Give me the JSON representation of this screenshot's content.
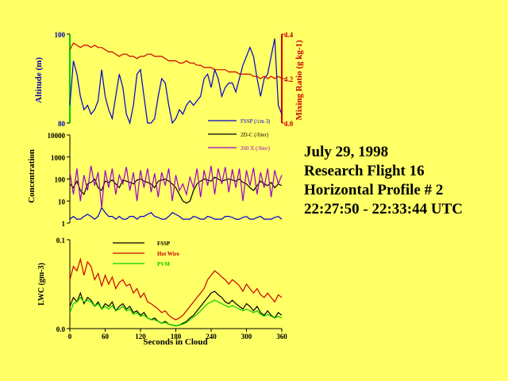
{
  "info": {
    "line1": "July 29, 1998",
    "line2": "Research Flight 16",
    "line3": "Horizontal Profile # 2",
    "line4": "22:27:50 - 22:33:44 UTC"
  },
  "colors": {
    "background": "#FFFF66",
    "axis": "#000000",
    "black": "#000000",
    "blue": "#0000CC",
    "red": "#CC0000",
    "purple": "#9900CC",
    "green": "#00CC00",
    "altitude_label": "#0000AA",
    "mixing_label": "#CC0000"
  },
  "chart_data": [
    {
      "type": "line",
      "panel": "top",
      "ylabel": "Altitude (m)",
      "y2label": "Mixing Ratio (g kg-1)",
      "ylim": [
        80,
        100
      ],
      "yticks": [
        "80",
        "100"
      ],
      "y2lim": [
        4.0,
        4.4
      ],
      "y2ticks": [
        "4.0",
        "4.2",
        "4.4"
      ],
      "xlim": [
        0,
        360
      ],
      "series": [
        {
          "key": "altitude",
          "axis": "left",
          "color": "#0000CC",
          "x": [
            0,
            6,
            12,
            18,
            24,
            30,
            36,
            42,
            48,
            54,
            60,
            66,
            72,
            78,
            84,
            90,
            96,
            102,
            108,
            114,
            120,
            126,
            132,
            138,
            144,
            150,
            156,
            162,
            168,
            174,
            180,
            186,
            192,
            198,
            204,
            210,
            216,
            222,
            228,
            234,
            240,
            246,
            252,
            258,
            264,
            270,
            276,
            282,
            288,
            294,
            300,
            306,
            312,
            318,
            324,
            330,
            336,
            342,
            348,
            354,
            360
          ],
          "values": [
            84,
            94,
            91,
            86,
            83,
            84,
            82,
            83,
            85,
            92,
            86,
            83,
            81,
            86,
            91,
            88,
            82,
            80,
            84,
            91,
            92,
            86,
            80,
            80,
            81,
            86,
            90,
            89,
            84,
            80,
            81,
            83,
            82,
            84,
            85,
            84,
            85,
            86,
            90,
            91,
            88,
            92,
            90,
            86,
            88,
            89,
            89,
            87,
            90,
            93,
            95,
            97,
            95,
            90,
            86,
            90,
            91,
            95,
            99,
            84,
            82
          ]
        },
        {
          "key": "mixing",
          "axis": "right",
          "color": "#CC0000",
          "x": [
            0,
            6,
            12,
            18,
            24,
            30,
            36,
            42,
            48,
            54,
            60,
            66,
            72,
            78,
            84,
            90,
            96,
            102,
            108,
            114,
            120,
            126,
            132,
            138,
            144,
            150,
            156,
            162,
            168,
            174,
            180,
            186,
            192,
            198,
            204,
            210,
            216,
            222,
            228,
            234,
            240,
            246,
            252,
            258,
            264,
            270,
            276,
            282,
            288,
            294,
            300,
            306,
            312,
            318,
            324,
            330,
            336,
            342,
            348,
            354,
            360
          ],
          "values": [
            4.33,
            4.36,
            4.35,
            4.34,
            4.35,
            4.35,
            4.34,
            4.35,
            4.34,
            4.34,
            4.33,
            4.32,
            4.32,
            4.31,
            4.3,
            4.31,
            4.31,
            4.3,
            4.3,
            4.29,
            4.3,
            4.3,
            4.31,
            4.31,
            4.3,
            4.3,
            4.3,
            4.29,
            4.28,
            4.28,
            4.28,
            4.27,
            4.27,
            4.28,
            4.27,
            4.27,
            4.26,
            4.26,
            4.25,
            4.25,
            4.25,
            4.24,
            4.24,
            4.24,
            4.24,
            4.23,
            4.23,
            4.23,
            4.22,
            4.22,
            4.22,
            4.22,
            4.21,
            4.21,
            4.2,
            4.21,
            4.2,
            4.21,
            4.2,
            4.21,
            4.2
          ]
        }
      ],
      "legend": [
        "FSSP (/cm 3)",
        "2D-C (/liter)",
        "260 X (/liter)"
      ]
    },
    {
      "type": "line",
      "panel": "middle",
      "ylabel": "Concentration",
      "yscale": "log",
      "ylim": [
        1,
        10000
      ],
      "yticks": [
        "1",
        "10",
        "100",
        "1000",
        "10000"
      ],
      "xlim": [
        0,
        360
      ],
      "series": [
        {
          "key": "fssp",
          "color": "#000000",
          "x": [
            0,
            6,
            12,
            18,
            24,
            30,
            36,
            42,
            48,
            54,
            60,
            66,
            72,
            78,
            84,
            90,
            96,
            102,
            108,
            114,
            120,
            126,
            132,
            138,
            144,
            150,
            156,
            162,
            168,
            174,
            180,
            186,
            192,
            198,
            204,
            210,
            216,
            222,
            228,
            234,
            240,
            246,
            252,
            258,
            264,
            270,
            276,
            282,
            288,
            294,
            300,
            306,
            312,
            318,
            324,
            330,
            336,
            342,
            348,
            354,
            360
          ],
          "values": [
            60,
            40,
            80,
            30,
            20,
            60,
            70,
            100,
            40,
            30,
            80,
            70,
            90,
            60,
            40,
            90,
            80,
            70,
            60,
            90,
            100,
            80,
            70,
            60,
            40,
            80,
            90,
            100,
            80,
            60,
            40,
            20,
            10,
            8,
            10,
            30,
            60,
            80,
            100,
            90,
            80,
            120,
            100,
            80,
            90,
            100,
            90,
            80,
            100,
            70,
            60,
            40,
            30,
            50,
            80,
            60,
            50,
            70,
            40,
            60,
            50
          ]
        },
        {
          "key": "2dc",
          "color": "#0000CC",
          "x": [
            0,
            6,
            12,
            18,
            24,
            30,
            36,
            42,
            48,
            54,
            60,
            66,
            72,
            78,
            84,
            90,
            96,
            102,
            108,
            114,
            120,
            126,
            132,
            138,
            144,
            150,
            156,
            162,
            168,
            174,
            180,
            186,
            192,
            198,
            204,
            210,
            216,
            222,
            228,
            234,
            240,
            246,
            252,
            258,
            264,
            270,
            276,
            282,
            288,
            294,
            300,
            306,
            312,
            318,
            324,
            330,
            336,
            342,
            348,
            354,
            360
          ],
          "values": [
            1.5,
            2,
            1.5,
            1.5,
            2,
            2.5,
            2,
            1.5,
            2,
            5,
            3,
            2,
            2,
            1.5,
            2,
            1.5,
            1.5,
            2,
            2,
            1.5,
            2,
            2,
            2.5,
            3,
            2,
            1.8,
            1.5,
            1.5,
            2,
            3,
            2.5,
            2,
            1.5,
            1.5,
            1.5,
            2,
            1.8,
            1.5,
            1.5,
            2,
            1.8,
            1.5,
            1.5,
            1.5,
            2,
            2,
            1.8,
            1.5,
            1.5,
            1.8,
            2,
            1.5,
            1.5,
            1.8,
            2,
            1.5,
            1.5,
            1.5,
            1.8,
            2,
            1.5
          ]
        },
        {
          "key": "260x",
          "color": "#9900CC",
          "x": [
            0,
            6,
            12,
            18,
            24,
            30,
            36,
            42,
            48,
            54,
            60,
            66,
            72,
            78,
            84,
            90,
            96,
            102,
            108,
            114,
            120,
            126,
            132,
            138,
            144,
            150,
            156,
            162,
            168,
            174,
            180,
            186,
            192,
            198,
            204,
            210,
            216,
            222,
            228,
            234,
            240,
            246,
            252,
            258,
            264,
            270,
            276,
            282,
            288,
            294,
            300,
            306,
            312,
            318,
            324,
            330,
            336,
            342,
            348,
            354,
            360
          ],
          "values": [
            200,
            20,
            300,
            10,
            150,
            30,
            400,
            50,
            200,
            5,
            250,
            40,
            300,
            20,
            150,
            60,
            350,
            30,
            200,
            10,
            250,
            40,
            300,
            25,
            180,
            15,
            200,
            50,
            300,
            10,
            150,
            30,
            60,
            20,
            120,
            40,
            300,
            15,
            250,
            50,
            400,
            20,
            300,
            60,
            350,
            25,
            280,
            40,
            300,
            10,
            250,
            50,
            320,
            20,
            200,
            40,
            300,
            15,
            250,
            60,
            150
          ]
        }
      ]
    },
    {
      "type": "line",
      "panel": "bottom",
      "ylabel": "LWC (gm-3)",
      "xlabel": "Seconds in Cloud",
      "ylim": [
        0.0,
        0.1
      ],
      "yticks": [
        "0.0",
        "0.1"
      ],
      "xlim": [
        0,
        360
      ],
      "xticks": [
        "0",
        "60",
        "120",
        "180",
        "240",
        "300",
        "360"
      ],
      "legend": [
        "FSSP",
        "Hot Wire",
        "PVM"
      ],
      "series": [
        {
          "key": "hotwire",
          "color": "#CC0000",
          "x": [
            0,
            6,
            12,
            18,
            24,
            30,
            36,
            42,
            48,
            54,
            60,
            66,
            72,
            78,
            84,
            90,
            96,
            102,
            108,
            114,
            120,
            126,
            132,
            138,
            144,
            150,
            156,
            162,
            168,
            174,
            180,
            186,
            192,
            198,
            204,
            210,
            216,
            222,
            228,
            234,
            240,
            246,
            252,
            258,
            264,
            270,
            276,
            282,
            288,
            294,
            300,
            306,
            312,
            318,
            324,
            330,
            336,
            342,
            348,
            354,
            360
          ],
          "values": [
            0.055,
            0.07,
            0.065,
            0.078,
            0.06,
            0.075,
            0.07,
            0.055,
            0.062,
            0.048,
            0.06,
            0.05,
            0.058,
            0.045,
            0.052,
            0.055,
            0.048,
            0.05,
            0.04,
            0.045,
            0.035,
            0.04,
            0.03,
            0.028,
            0.025,
            0.022,
            0.018,
            0.02,
            0.015,
            0.012,
            0.01,
            0.012,
            0.015,
            0.02,
            0.025,
            0.03,
            0.035,
            0.04,
            0.045,
            0.055,
            0.06,
            0.065,
            0.062,
            0.058,
            0.055,
            0.05,
            0.055,
            0.052,
            0.048,
            0.042,
            0.05,
            0.045,
            0.04,
            0.045,
            0.038,
            0.035,
            0.04,
            0.035,
            0.03,
            0.038,
            0.035
          ]
        },
        {
          "key": "fssp",
          "color": "#000000",
          "x": [
            0,
            6,
            12,
            18,
            24,
            30,
            36,
            42,
            48,
            54,
            60,
            66,
            72,
            78,
            84,
            90,
            96,
            102,
            108,
            114,
            120,
            126,
            132,
            138,
            144,
            150,
            156,
            162,
            168,
            174,
            180,
            186,
            192,
            198,
            204,
            210,
            216,
            222,
            228,
            234,
            240,
            246,
            252,
            258,
            264,
            270,
            276,
            282,
            288,
            294,
            300,
            306,
            312,
            318,
            324,
            330,
            336,
            342,
            348,
            354,
            360
          ],
          "values": [
            0.025,
            0.035,
            0.03,
            0.04,
            0.028,
            0.035,
            0.032,
            0.025,
            0.03,
            0.022,
            0.028,
            0.025,
            0.03,
            0.02,
            0.025,
            0.028,
            0.022,
            0.025,
            0.018,
            0.02,
            0.015,
            0.018,
            0.012,
            0.01,
            0.012,
            0.008,
            0.006,
            0.008,
            0.005,
            0.004,
            0.003,
            0.004,
            0.006,
            0.008,
            0.012,
            0.015,
            0.02,
            0.025,
            0.03,
            0.035,
            0.04,
            0.042,
            0.038,
            0.035,
            0.03,
            0.028,
            0.032,
            0.028,
            0.025,
            0.022,
            0.028,
            0.025,
            0.02,
            0.025,
            0.018,
            0.015,
            0.02,
            0.015,
            0.012,
            0.018,
            0.015
          ]
        },
        {
          "key": "pvm",
          "color": "#00CC00",
          "x": [
            0,
            6,
            12,
            18,
            24,
            30,
            36,
            42,
            48,
            54,
            60,
            66,
            72,
            78,
            84,
            90,
            96,
            102,
            108,
            114,
            120,
            126,
            132,
            138,
            144,
            150,
            156,
            162,
            168,
            174,
            180,
            186,
            192,
            198,
            204,
            210,
            216,
            222,
            228,
            234,
            240,
            246,
            252,
            258,
            264,
            270,
            276,
            282,
            288,
            294,
            300,
            306,
            312,
            318,
            324,
            330,
            336,
            342,
            348,
            354,
            360
          ],
          "values": [
            0.018,
            0.028,
            0.03,
            0.035,
            0.03,
            0.032,
            0.03,
            0.025,
            0.028,
            0.022,
            0.025,
            0.022,
            0.026,
            0.02,
            0.022,
            0.025,
            0.02,
            0.022,
            0.016,
            0.018,
            0.014,
            0.015,
            0.012,
            0.01,
            0.01,
            0.008,
            0.006,
            0.007,
            0.005,
            0.004,
            0.003,
            0.004,
            0.005,
            0.007,
            0.01,
            0.013,
            0.016,
            0.02,
            0.024,
            0.028,
            0.03,
            0.032,
            0.03,
            0.028,
            0.026,
            0.024,
            0.026,
            0.024,
            0.022,
            0.02,
            0.022,
            0.02,
            0.018,
            0.02,
            0.016,
            0.014,
            0.016,
            0.014,
            0.012,
            0.014,
            0.012
          ]
        }
      ]
    }
  ]
}
